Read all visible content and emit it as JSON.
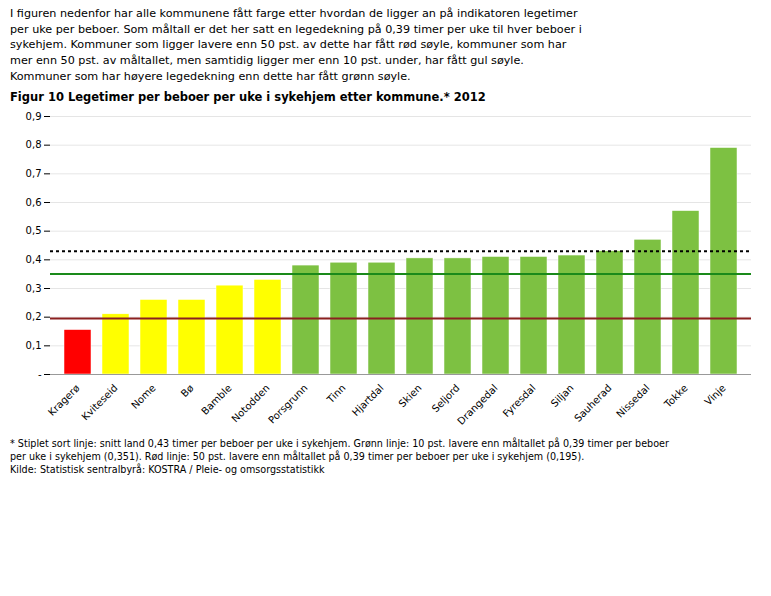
{
  "chart_data": {
    "type": "bar",
    "title": "Figur 10 Legetimer per beboer per uke i sykehjem etter kommune.* 2012",
    "subtitle": [
      "I figuren nedenfor har alle kommunene fått farge etter hvordan de ligger an på indikatoren legetimer",
      "per uke per beboer. Som måltall er det her satt en legedekning på 0,39 timer per uke til hver beboer i",
      "sykehjem. Kommuner som ligger lavere enn 50 pst. av dette har fått rød søyle, kommuner som har",
      "mer enn 50 pst. av måltallet, men samtidig ligger mer enn 10 pst. under, har fått gul søyle.",
      "Kommuner som har høyere legedekning enn dette har fått grønn søyle."
    ],
    "footnotes": [
      "* Stiplet sort linje: snitt land 0,43 timer per beboer per uke i sykehjem. Grønn linje: 10 pst. lavere enn måltallet på 0,39 timer per beboer",
      "per uke i sykehjem (0,351). Rød linje: 50 pst. lavere enn måltallet på 0,39 timer per beboer per uke i sykehjem (0,195).",
      "Kilde: Statistisk sentralbyrå: KOSTRA / Pleie- og omsorgsstatistikk"
    ],
    "categories": [
      "Kragerø",
      "Kviteseid",
      "Nome",
      "Bø",
      "Bamble",
      "Notodden",
      "Porsgrunn",
      "Tinn",
      "Hjartdal",
      "Skien",
      "Seljord",
      "Drangedal",
      "Fyresdal",
      "Siljan",
      "Sauherad",
      "Nissedal",
      "Tokke",
      "Vinje"
    ],
    "values": [
      0.155,
      0.21,
      0.26,
      0.26,
      0.31,
      0.33,
      0.38,
      0.39,
      0.39,
      0.405,
      0.405,
      0.41,
      0.41,
      0.415,
      0.43,
      0.47,
      0.57,
      0.79
    ],
    "colors": [
      "#ff0000",
      "#ffff00",
      "#ffff00",
      "#ffff00",
      "#ffff00",
      "#ffff00",
      "#7dc142",
      "#7dc142",
      "#7dc142",
      "#7dc142",
      "#7dc142",
      "#7dc142",
      "#7dc142",
      "#7dc142",
      "#7dc142",
      "#7dc142",
      "#7dc142",
      "#7dc142"
    ],
    "reference_lines": [
      {
        "value": 0.43,
        "color": "#000000",
        "line_style": "dotted"
      },
      {
        "value": 0.351,
        "color": "#1a8a1a",
        "line_style": "solid"
      },
      {
        "value": 0.195,
        "color": "#8b2020",
        "line_style": "solid"
      }
    ],
    "ylim": [
      0,
      0.9
    ],
    "yticks": [
      {
        "value": 0.0,
        "label": "-"
      },
      {
        "value": 0.1,
        "label": "0,1"
      },
      {
        "value": 0.2,
        "label": "0,2"
      },
      {
        "value": 0.3,
        "label": "0,3"
      },
      {
        "value": 0.4,
        "label": "0,4"
      },
      {
        "value": 0.5,
        "label": "0,5"
      },
      {
        "value": 0.6,
        "label": "0,6"
      },
      {
        "value": 0.7,
        "label": "0,7"
      },
      {
        "value": 0.8,
        "label": "0,8"
      },
      {
        "value": 0.9,
        "label": "0,9"
      }
    ],
    "grid": true
  }
}
